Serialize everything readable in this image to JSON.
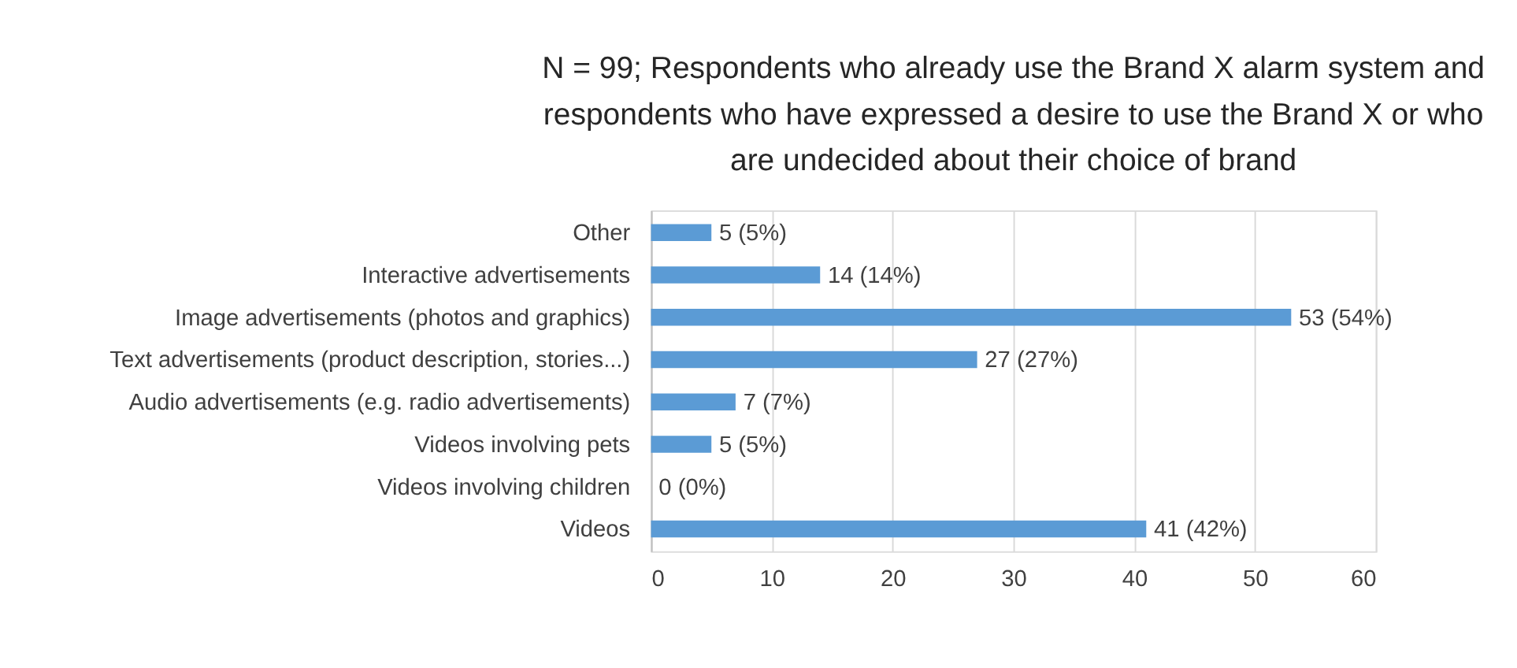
{
  "chart_data": {
    "type": "bar",
    "orientation": "horizontal",
    "title": "N = 99; Respondents who already use the Brand X alarm system and respondents who have expressed a desire to use the Brand X or who are undecided about their choice of brand",
    "categories": [
      "Other",
      "Interactive advertisements",
      "Image advertisements (photos and graphics)",
      "Text advertisements (product description, stories...)",
      "Audio advertisements (e.g. radio advertisements)",
      "Videos involving pets",
      "Videos involving children",
      "Videos"
    ],
    "values": [
      5,
      14,
      53,
      27,
      7,
      5,
      0,
      41
    ],
    "value_labels": [
      "5 (5%)",
      "14 (14%)",
      "53 (54%)",
      "27 (27%)",
      "7 (7%)",
      "5 (5%)",
      "0 (0%)",
      "41 (42%)"
    ],
    "color": "#5b9bd5",
    "xlim": [
      0,
      60
    ],
    "xticks": [
      0,
      10,
      20,
      30,
      40,
      50,
      60
    ],
    "grid": "x"
  }
}
